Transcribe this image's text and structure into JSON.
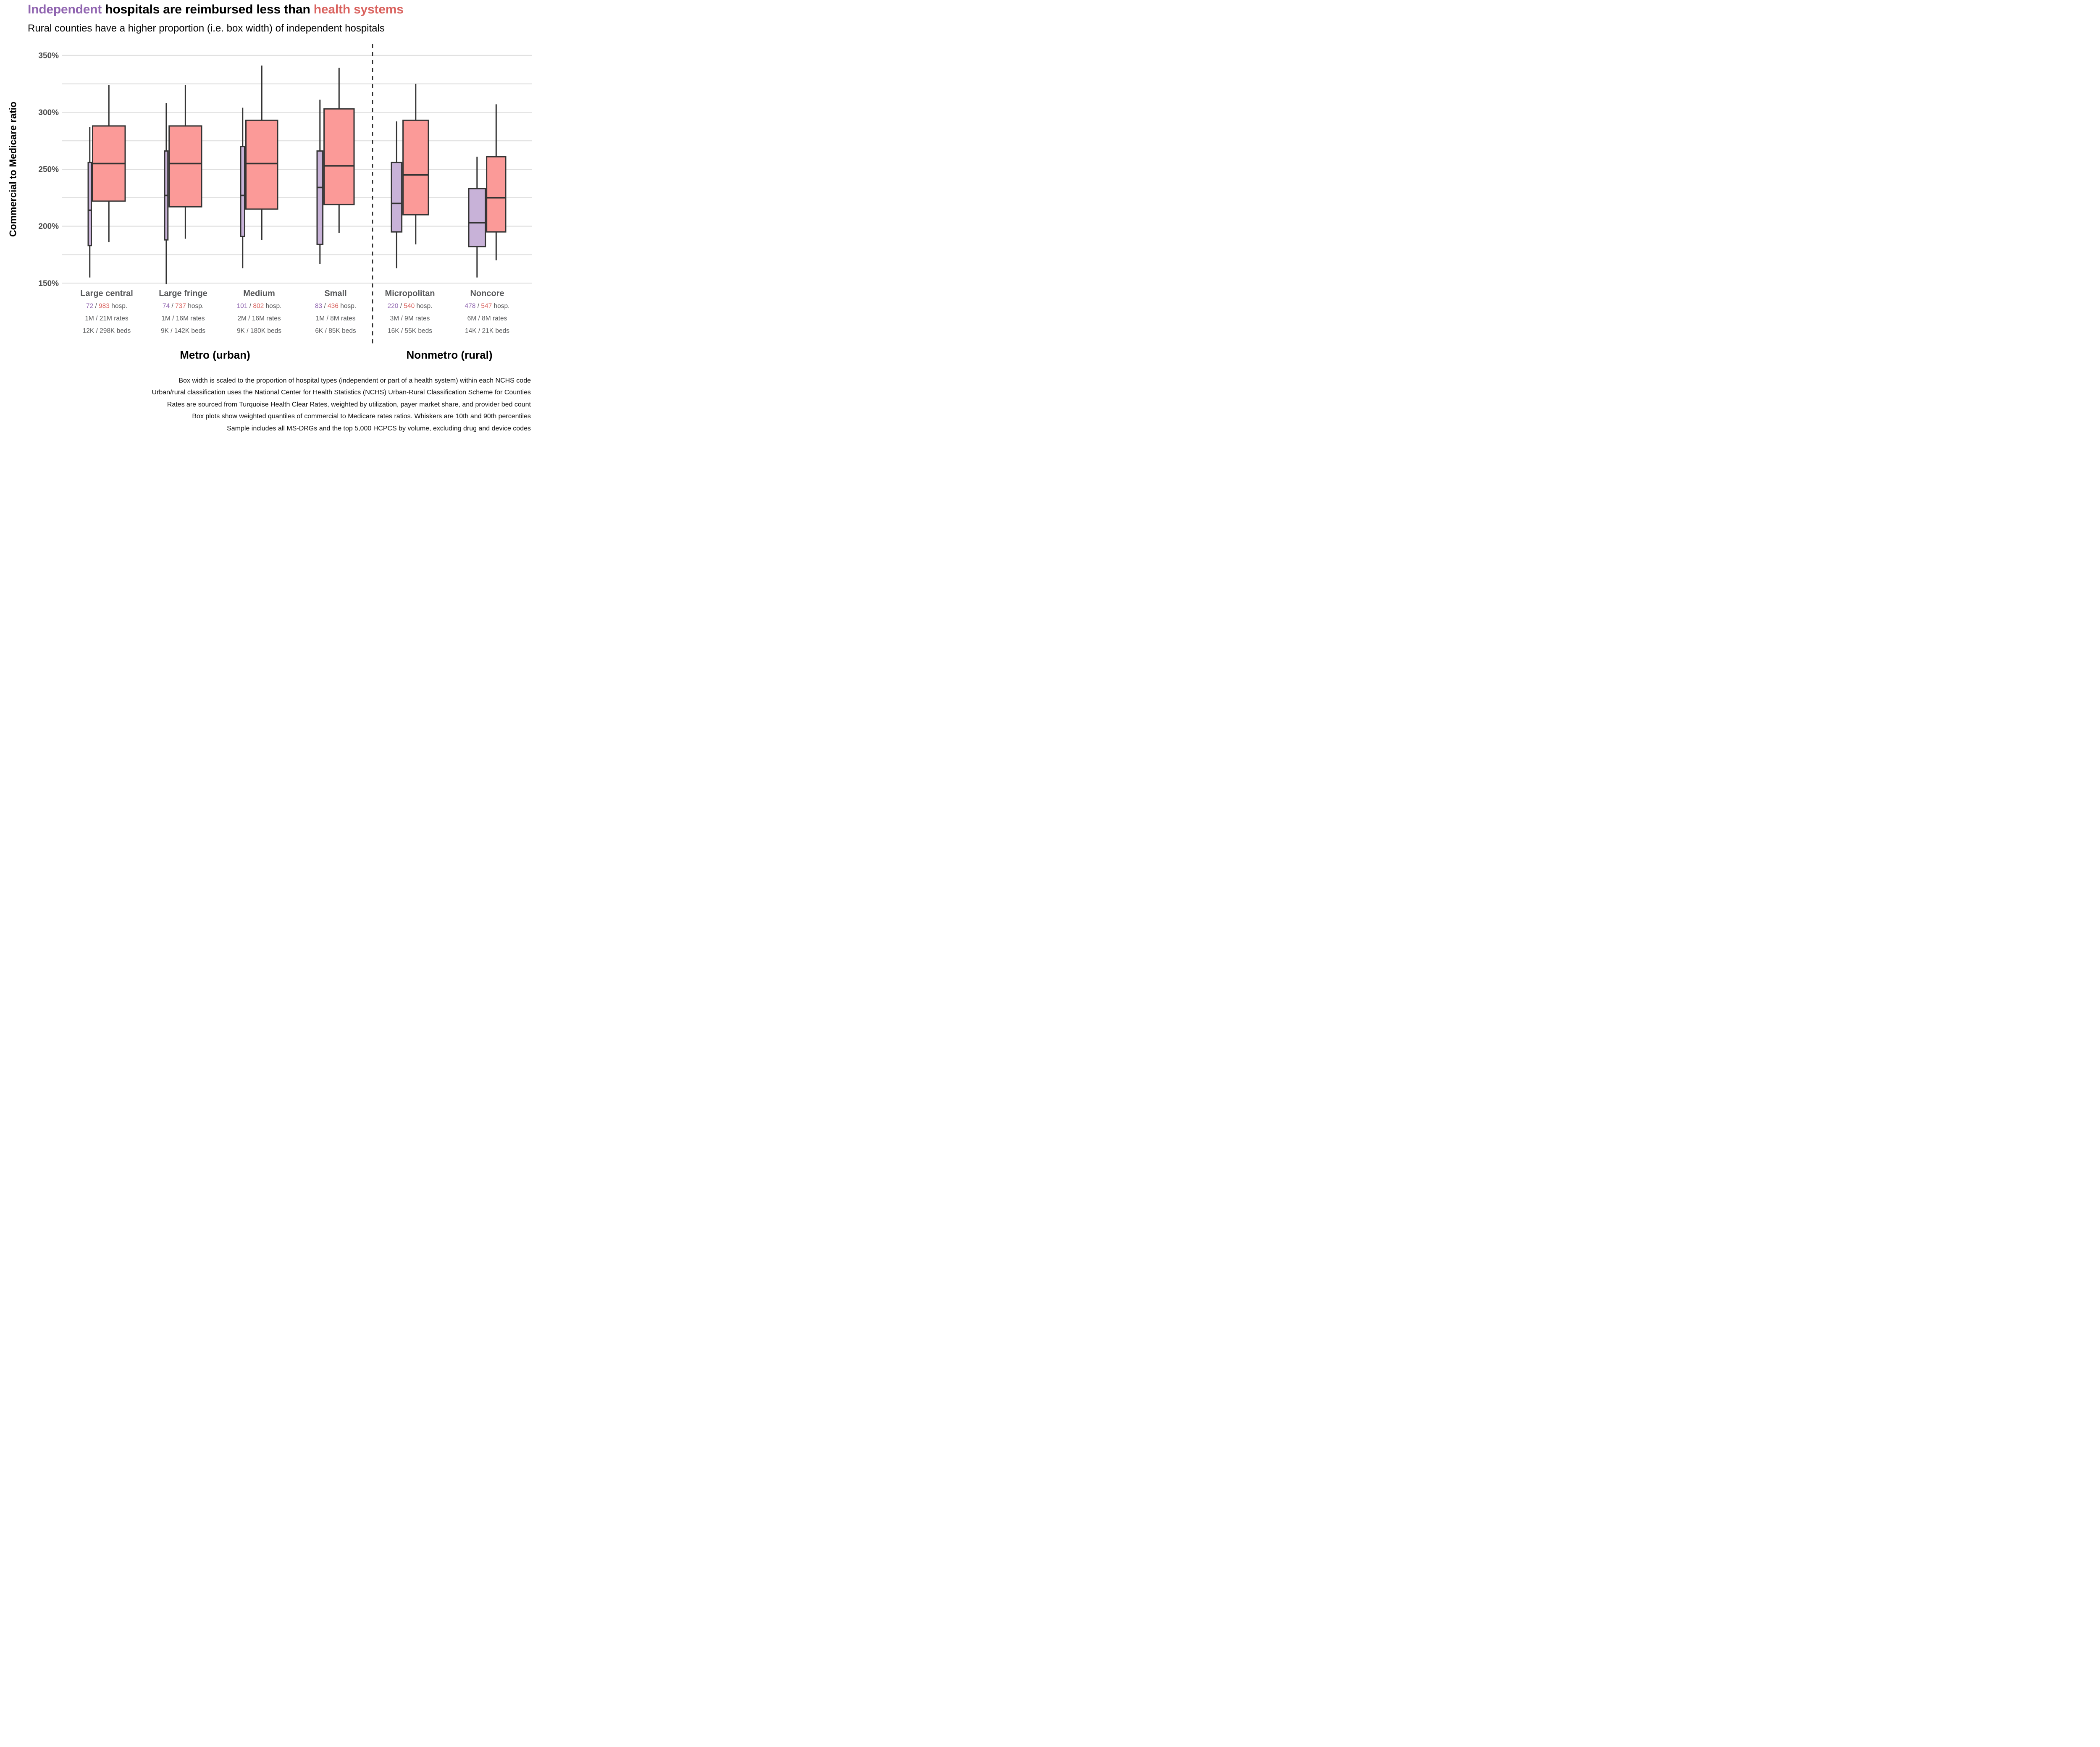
{
  "title": {
    "independent": "Independent",
    "middle": " hospitals are reimbursed less than ",
    "health_systems": "health systems"
  },
  "subtitle": "Rural counties have a higher proportion (i.e. box width) of independent hospitals",
  "colors": {
    "independent_text": "#9065b0",
    "system_text": "#d9625e",
    "independent_fill": "#c8b2d8",
    "system_fill": "#fb9a98",
    "box_border": "#333333",
    "gridline": "#dcdcdc",
    "tick_text": "#4d4d4d",
    "label_text": "#57585a",
    "divider": "#2b2b2b"
  },
  "chart_data": {
    "type": "grouped_boxplot",
    "title": "Independent hospitals are reimbursed less than health systems",
    "subtitle": "Rural counties have a higher proportion (i.e. box width) of independent hospitals",
    "ylabel": "Commercial to Medicare ratio",
    "ylim": [
      150,
      350
    ],
    "yticks": [
      350,
      300,
      250,
      200,
      150
    ],
    "ytick_labels": [
      "350%",
      "300%",
      "250%",
      "200%",
      "150%"
    ],
    "gridlines_pct": [
      150,
      175,
      200,
      225,
      250,
      275,
      300,
      325,
      350
    ],
    "grid": true,
    "legend_position": "none",
    "series_names": [
      "Independent",
      "Health system"
    ],
    "whisker_note": "Whiskers are 10th and 90th percentiles",
    "sections": [
      {
        "label": "Metro (urban)",
        "group_indexes": [
          0,
          1,
          2,
          3
        ]
      },
      {
        "label": "Nonmetro (rural)",
        "group_indexes": [
          4,
          5
        ]
      }
    ],
    "groups": [
      {
        "category": "Large central",
        "independent": {
          "count": 72,
          "low": 155,
          "q1": 183,
          "median": 214,
          "q3": 256,
          "high": 287
        },
        "system": {
          "count": 983,
          "low": 186,
          "q1": 222,
          "median": 255,
          "q3": 288,
          "high": 324
        },
        "hosp_line": {
          "ind": "72",
          "sep": " / ",
          "sys": "983",
          "suffix": " hosp."
        },
        "rates_line": "1M / 21M rates",
        "beds_line": "12K / 298K beds"
      },
      {
        "category": "Large fringe",
        "independent": {
          "count": 74,
          "low": 149,
          "q1": 188,
          "median": 227,
          "q3": 266,
          "high": 308
        },
        "system": {
          "count": 737,
          "low": 189,
          "q1": 217,
          "median": 255,
          "q3": 288,
          "high": 324
        },
        "hosp_line": {
          "ind": "74",
          "sep": " / ",
          "sys": "737",
          "suffix": " hosp."
        },
        "rates_line": "1M / 16M rates",
        "beds_line": "9K / 142K beds"
      },
      {
        "category": "Medium",
        "independent": {
          "count": 101,
          "low": 163,
          "q1": 191,
          "median": 227,
          "q3": 270,
          "high": 304
        },
        "system": {
          "count": 802,
          "low": 188,
          "q1": 215,
          "median": 255,
          "q3": 293,
          "high": 341
        },
        "hosp_line": {
          "ind": "101",
          "sep": " / ",
          "sys": "802",
          "suffix": " hosp."
        },
        "rates_line": "2M / 16M rates",
        "beds_line": "9K / 180K beds"
      },
      {
        "category": "Small",
        "independent": {
          "count": 83,
          "low": 167,
          "q1": 184,
          "median": 234,
          "q3": 266,
          "high": 311
        },
        "system": {
          "count": 436,
          "low": 194,
          "q1": 219,
          "median": 253,
          "q3": 303,
          "high": 339
        },
        "hosp_line": {
          "ind": "83",
          "sep": " / ",
          "sys": "436",
          "suffix": " hosp."
        },
        "rates_line": "1M / 8M rates",
        "beds_line": "6K / 85K beds"
      },
      {
        "category": "Micropolitan",
        "independent": {
          "count": 220,
          "low": 163,
          "q1": 195,
          "median": 220,
          "q3": 256,
          "high": 292
        },
        "system": {
          "count": 540,
          "low": 184,
          "q1": 210,
          "median": 245,
          "q3": 293,
          "high": 325
        },
        "hosp_line": {
          "ind": "220",
          "sep": " / ",
          "sys": "540",
          "suffix": " hosp."
        },
        "rates_line": "3M / 9M rates",
        "beds_line": "16K / 55K beds"
      },
      {
        "category": "Noncore",
        "independent": {
          "count": 478,
          "low": 155,
          "q1": 182,
          "median": 203,
          "q3": 233,
          "high": 261
        },
        "system": {
          "count": 547,
          "low": 170,
          "q1": 195,
          "median": 225,
          "q3": 261,
          "high": 307
        },
        "hosp_line": {
          "ind": "478",
          "sep": " / ",
          "sys": "547",
          "suffix": " hosp."
        },
        "rates_line": "6M / 8M rates",
        "beds_line": "14K / 21K beds"
      }
    ]
  },
  "footer": [
    "Box width is scaled to the proportion of hospital types (independent or part of a health system) within each NCHS code",
    "Urban/rural classification uses the National Center for Health Statistics (NCHS) Urban-Rural Classification Scheme for Counties",
    "Rates are sourced from Turquoise Health Clear Rates, weighted by utilization, payer market share, and provider bed count",
    "Box plots show weighted quantiles of commercial to Medicare rates ratios. Whiskers are 10th and 90th percentiles",
    "Sample includes all MS-DRGs and the top 5,000 HCPCS by volume, excluding drug and device codes"
  ]
}
